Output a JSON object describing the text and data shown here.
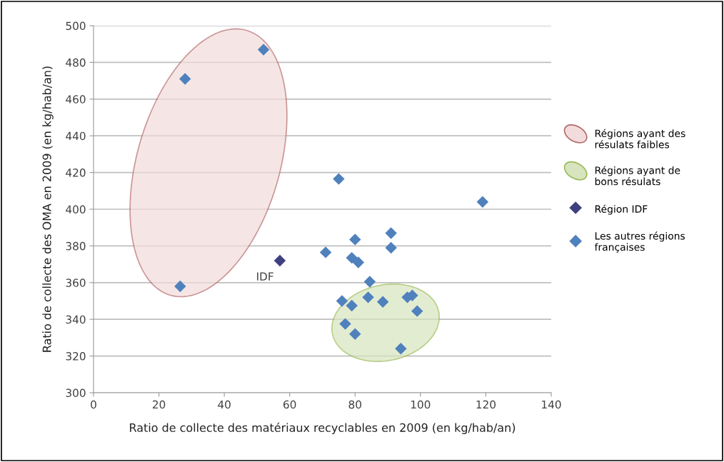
{
  "chart_data": {
    "type": "scatter",
    "xlabel": "Ratio de collecte des matériaux recyclables en 2009 (en kg/hab/an)",
    "ylabel": "Ratio de collecte des OMA en 2009 (en kg/hab/an)",
    "xlim": [
      0,
      140
    ],
    "xticks": [
      0,
      20,
      40,
      60,
      80,
      100,
      120,
      140
    ],
    "ylim": [
      300,
      500
    ],
    "yticks": [
      300,
      320,
      340,
      360,
      380,
      400,
      420,
      440,
      460,
      480,
      500
    ],
    "grid": "y",
    "legend": "right",
    "marker": "diamond",
    "series": [
      {
        "name": "Région IDF",
        "color": "#403f7f",
        "x": [
          57
        ],
        "values": [
          372
        ]
      },
      {
        "name": "Les autres régions françaises",
        "color": "#4f81bd",
        "x": [
          28,
          52,
          26.5,
          75,
          119,
          91,
          80,
          91,
          71,
          79,
          81,
          84.5,
          76,
          79,
          84,
          88.5,
          96,
          97.5,
          99,
          77,
          80,
          94
        ],
        "values": [
          471,
          487,
          358,
          416.5,
          404,
          387,
          383.5,
          379,
          376.5,
          373.5,
          371,
          360.5,
          350,
          347.5,
          352,
          349.5,
          352,
          353,
          344.5,
          337.5,
          332,
          324
        ]
      }
    ],
    "annotations": [
      {
        "text": "IDF",
        "x": 57,
        "y": 372
      },
      "Régions ayant des résulats faibles",
      "Régions ayant de bons résulats"
    ]
  }
}
